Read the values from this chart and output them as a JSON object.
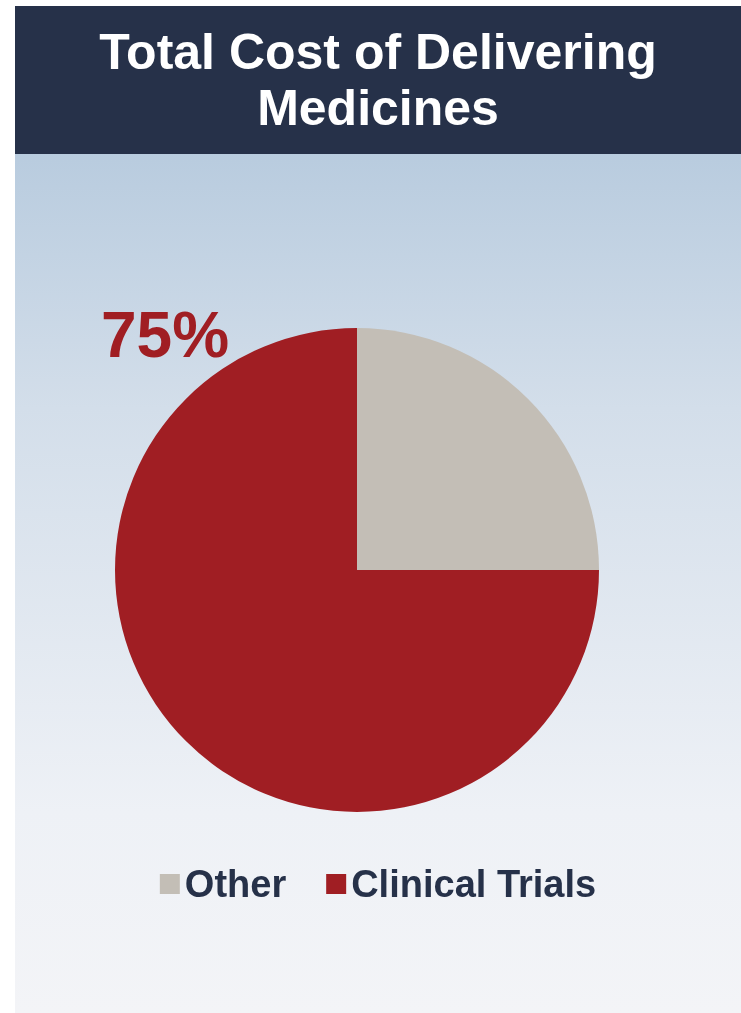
{
  "chart_data": {
    "type": "pie",
    "title": "Total Cost of Delivering Medicines",
    "categories": [
      "Other",
      "Clinical Trials"
    ],
    "values": [
      25,
      75
    ],
    "colors": [
      "#c3beb6",
      "#a01e23"
    ],
    "value_labels": [
      null,
      "75%"
    ],
    "legend": "bottom"
  }
}
